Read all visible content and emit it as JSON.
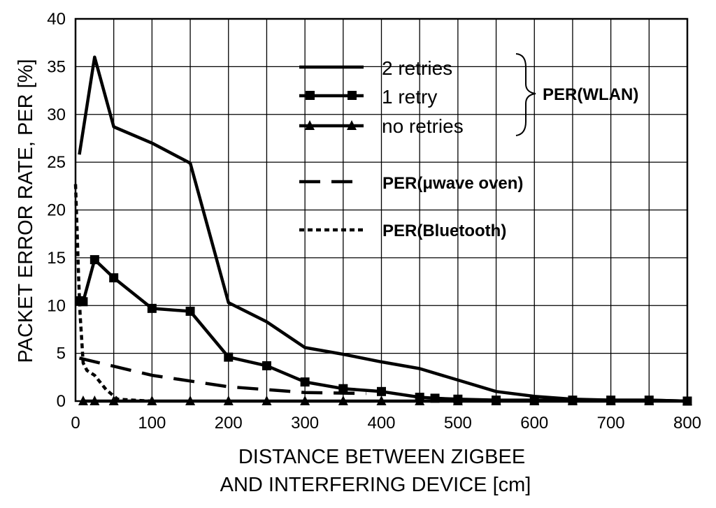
{
  "chart_data": {
    "type": "line",
    "xlabel_line1": "DISTANCE BETWEEN ZIGBEE",
    "xlabel_line2": "AND INTERFERING DEVICE  [cm]",
    "ylabel": "PACKET ERROR RATE, PER [%]",
    "xlim": [
      0,
      800
    ],
    "ylim": [
      0,
      40
    ],
    "xticks": [
      "0",
      "100",
      "200",
      "300",
      "400",
      "500",
      "600",
      "700",
      "800"
    ],
    "yticks": [
      "0",
      "5",
      "10",
      "15",
      "20",
      "25",
      "30",
      "35",
      "40"
    ],
    "grid": true,
    "legend_group_label": "PER(WLAN)",
    "series": [
      {
        "name": "2 retries",
        "style": "solid",
        "marker": "none",
        "x": [
          5,
          25,
          50,
          100,
          150,
          200,
          250,
          300,
          350,
          400,
          450,
          500,
          550,
          600,
          650,
          700,
          750,
          800
        ],
        "y": [
          25.8,
          36.0,
          28.7,
          27.0,
          24.9,
          10.3,
          8.3,
          5.6,
          4.9,
          4.1,
          3.4,
          2.2,
          1.0,
          0.5,
          0.2,
          0.1,
          0.1,
          0.0
        ]
      },
      {
        "name": "1 retry",
        "style": "solid",
        "marker": "square",
        "x": [
          5,
          10,
          25,
          50,
          100,
          150,
          200,
          250,
          300,
          350,
          400,
          450,
          470,
          500,
          550,
          600,
          650,
          700,
          750,
          800
        ],
        "y": [
          10.5,
          10.4,
          14.8,
          12.9,
          9.7,
          9.4,
          4.6,
          3.7,
          2.0,
          1.3,
          1.0,
          0.4,
          0.3,
          0.2,
          0.1,
          0.1,
          0.1,
          0.1,
          0.1,
          0.0
        ]
      },
      {
        "name": "no retries",
        "style": "solid",
        "marker": "triangle",
        "x": [
          10,
          25,
          50,
          100,
          150,
          200,
          250,
          300,
          350,
          400,
          450,
          500,
          550,
          600,
          650,
          700,
          750,
          800
        ],
        "y": [
          0,
          0,
          0,
          0,
          0,
          0,
          0,
          0,
          0,
          0,
          0,
          0,
          0,
          0,
          0,
          0,
          0,
          0
        ]
      },
      {
        "name": "PER(μwave oven)",
        "style": "dashed",
        "marker": "none",
        "x": [
          5,
          100,
          200,
          300,
          380
        ],
        "y": [
          4.5,
          2.7,
          1.5,
          0.9,
          0.8
        ]
      },
      {
        "name": "PER(Bluetooth)",
        "style": "dotted",
        "marker": "none",
        "x": [
          0,
          2,
          4,
          6,
          8,
          10,
          15,
          25,
          40,
          55,
          75,
          100
        ],
        "y": [
          22.7,
          18.0,
          13.0,
          9.0,
          6.5,
          4.0,
          3.2,
          2.7,
          1.2,
          0.2,
          0.1,
          0.0
        ]
      }
    ]
  }
}
